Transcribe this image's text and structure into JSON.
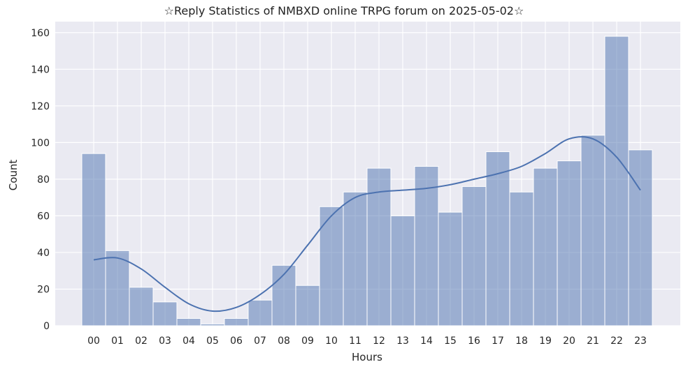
{
  "chart_data": {
    "type": "bar",
    "title": "☆Reply Statistics of NMBXD online TRPG forum on 2025-05-02☆",
    "xlabel": "Hours",
    "ylabel": "Count",
    "categories": [
      "00",
      "01",
      "02",
      "03",
      "04",
      "05",
      "06",
      "07",
      "08",
      "09",
      "10",
      "11",
      "12",
      "13",
      "14",
      "15",
      "16",
      "17",
      "18",
      "19",
      "20",
      "21",
      "22",
      "23"
    ],
    "values": [
      94,
      41,
      21,
      13,
      4,
      1,
      4,
      14,
      33,
      22,
      65,
      73,
      86,
      60,
      87,
      62,
      76,
      95,
      73,
      86,
      90,
      104,
      158,
      96
    ],
    "kde": [
      36,
      37,
      31,
      21,
      12,
      8,
      10,
      17,
      28,
      44,
      60,
      70,
      73,
      74,
      75,
      77,
      80,
      83,
      87,
      94,
      102,
      102,
      92,
      74
    ],
    "ylim": [
      0,
      166
    ],
    "yticks": [
      0,
      20,
      40,
      60,
      80,
      100,
      120,
      140,
      160
    ],
    "grid": true,
    "colors": {
      "background": "#eaeaf2",
      "grid": "#ffffff",
      "bar_fill": "#4c72b0",
      "bar_opacity": 0.5,
      "line": "#4c72b0"
    }
  }
}
